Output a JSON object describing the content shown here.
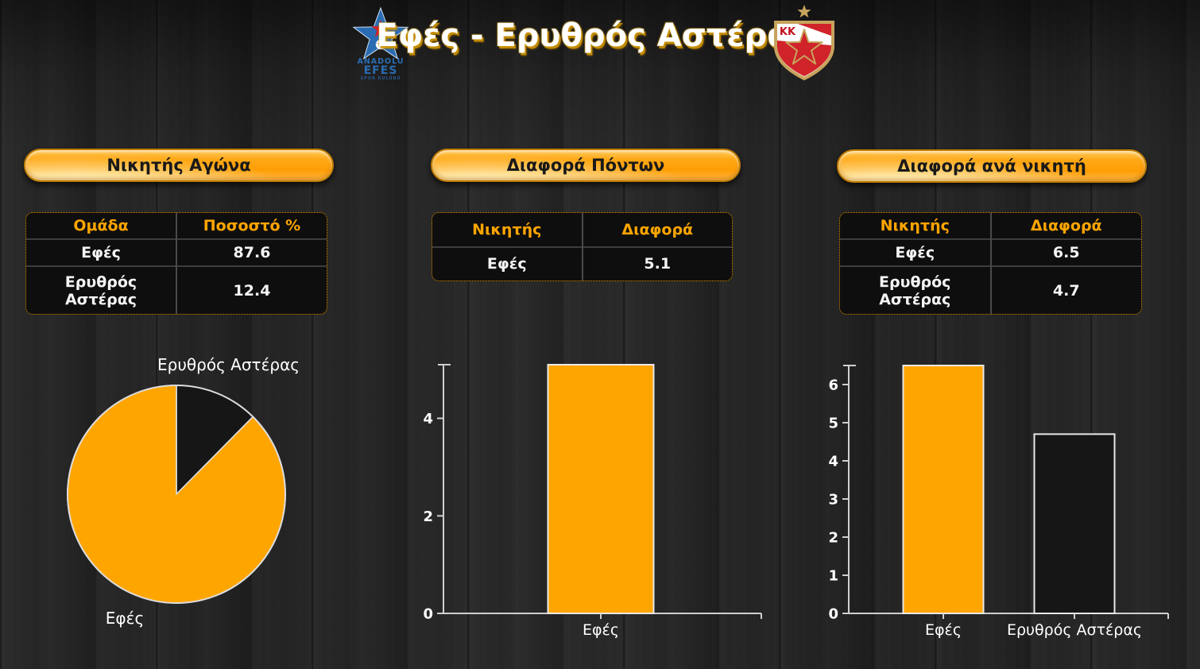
{
  "title": "Εφές - Ερυθρός Αστέρας",
  "logos": {
    "efes": {
      "name": "Anadolu Efes",
      "line1": "ANADOLU",
      "line2": "EFES",
      "line3": "SPOR KULÜBÜ"
    },
    "zvezda": {
      "name": "KK Crvena Zvezda",
      "initials": "KK"
    }
  },
  "colors": {
    "accent_orange": "#FFA500",
    "dark_slice": "#161616",
    "text_white": "#FFFFFF",
    "table_header_text": "#FFA500",
    "axis": "#CFCFCF",
    "bar_border": "#E8E8E8",
    "title_shadow": "#D49800"
  },
  "panels": [
    {
      "header": "Νικητής Αγώνα",
      "table": {
        "columns": [
          "Ομάδα",
          "Ποσοστό %"
        ],
        "rows": [
          [
            "Εφές",
            "87.6"
          ],
          [
            "Ερυθρός Αστέρας",
            "12.4"
          ]
        ]
      }
    },
    {
      "header": "Διαφορά Πόντων",
      "table": {
        "columns": [
          "Νικητής",
          "Διαφορά"
        ],
        "rows": [
          [
            "Εφές",
            "5.1"
          ]
        ]
      }
    },
    {
      "header": "Διαφορά ανά νικητή",
      "table": {
        "columns": [
          "Νικητής",
          "Διαφορά"
        ],
        "rows": [
          [
            "Εφές",
            "6.5"
          ],
          [
            "Ερυθρός Αστέρας",
            "4.7"
          ]
        ]
      }
    }
  ],
  "chart_data": [
    {
      "type": "pie",
      "panel": "Νικητής Αγώνα",
      "labels": [
        "Ερυθρός Αστέρας",
        "Εφές"
      ],
      "values": [
        12.4,
        87.6
      ],
      "colors": [
        "#161616",
        "#FFA500"
      ],
      "start_angle_deg": 0,
      "direction": "clockwise",
      "outline_color": "#DCDCDC",
      "legend_position": "labels-outside"
    },
    {
      "type": "bar",
      "panel": "Διαφορά Πόντων",
      "categories": [
        "Εφές"
      ],
      "values": [
        5.1
      ],
      "colors": [
        "#FFA500"
      ],
      "ylim": [
        0,
        5.1
      ],
      "yticks": [
        0,
        2,
        4
      ],
      "xlabel": "",
      "ylabel": "",
      "grid": false,
      "bar_border_color": "#E8E8E8",
      "axis_color": "#CFCFCF"
    },
    {
      "type": "bar",
      "panel": "Διαφορά ανά νικητή",
      "categories": [
        "Εφές",
        "Ερυθρός Αστέρας"
      ],
      "values": [
        6.5,
        4.7
      ],
      "colors": [
        "#FFA500",
        "#161616"
      ],
      "ylim": [
        0,
        6.5
      ],
      "yticks": [
        0,
        1,
        2,
        3,
        4,
        5,
        6
      ],
      "xlabel": "",
      "ylabel": "",
      "grid": false,
      "bar_border_color": "#E8E8E8",
      "axis_color": "#CFCFCF"
    }
  ]
}
